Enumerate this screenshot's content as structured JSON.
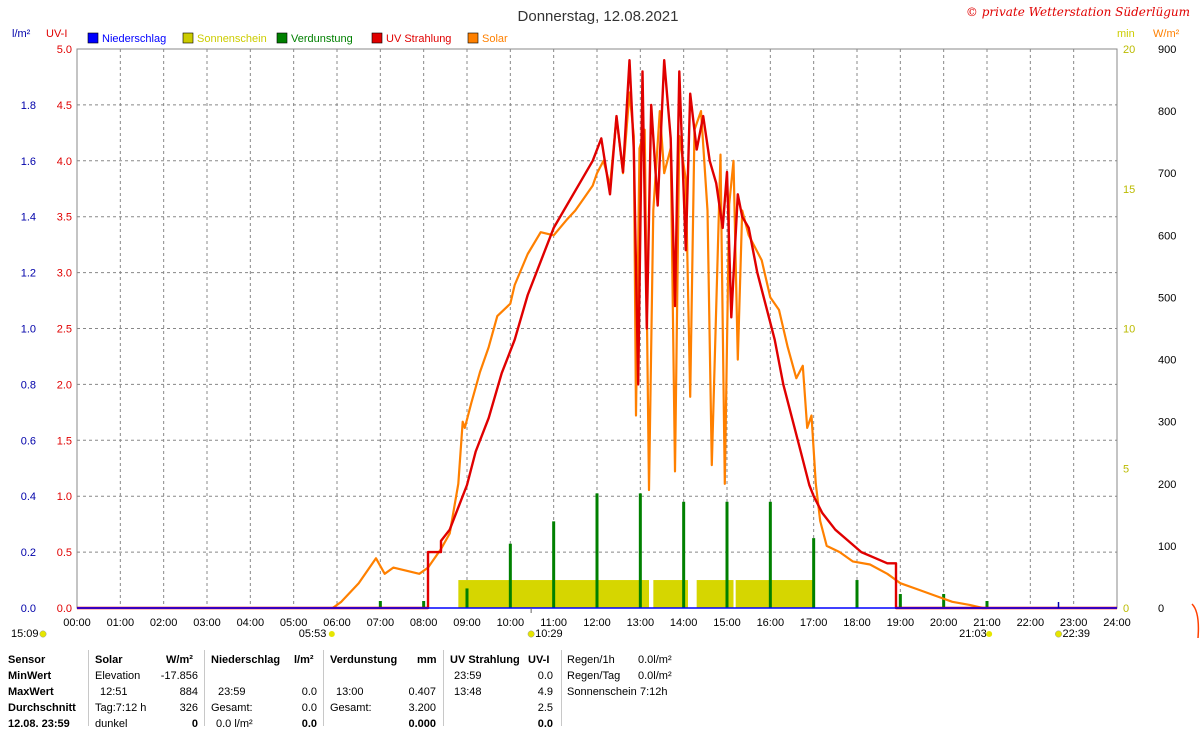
{
  "header": {
    "title": "Donnerstag, 12.08.2021",
    "copyright": "© private Wetterstation Süderlügum",
    "left_unit_1": "l/m²",
    "left_unit_2": "UV-I",
    "right_unit_1": "min",
    "right_unit_2": "W/m²"
  },
  "colors": {
    "niederschlag": "#0000ff",
    "sonnenschein": "#cccc00",
    "sonnenschein_fill": "#d6d600",
    "verdunstung": "#008000",
    "uv": "#e00000",
    "solar": "#ff8000",
    "grid": "#888888"
  },
  "chart_data": {
    "type": "line",
    "title": "Donnerstag, 12.08.2021",
    "legend": [
      {
        "name": "Niederschlag",
        "color": "#0000ff"
      },
      {
        "name": "Sonnenschein",
        "color": "#cccc00"
      },
      {
        "name": "Verdunstung",
        "color": "#008000"
      },
      {
        "name": "UV Strahlung",
        "color": "#e00000"
      },
      {
        "name": "Solar",
        "color": "#ff8000"
      }
    ],
    "legend_position": "top-left",
    "grid": true,
    "x_ticks": [
      "00:00",
      "01:00",
      "02:00",
      "03:00",
      "04:00",
      "05:00",
      "06:00",
      "07:00",
      "08:00",
      "09:00",
      "10:00",
      "11:00",
      "12:00",
      "13:00",
      "14:00",
      "15:00",
      "16:00",
      "17:00",
      "18:00",
      "19:00",
      "20:00",
      "21:00",
      "22:00",
      "23:00",
      "24:00"
    ],
    "x_range_hours": [
      0,
      24
    ],
    "axis_precip": {
      "unit": "l/m²",
      "range": [
        0,
        2.0
      ],
      "ticks": [
        "0.0",
        "0.2",
        "0.4",
        "0.6",
        "0.8",
        "1.0",
        "1.2",
        "1.4",
        "1.6",
        "1.8"
      ]
    },
    "axis_uv": {
      "unit": "UV-I",
      "range": [
        0,
        5.0
      ],
      "ticks": [
        "0.0",
        "0.5",
        "1.0",
        "1.5",
        "2.0",
        "2.5",
        "3.0",
        "3.5",
        "4.0",
        "4.5",
        "5.0"
      ]
    },
    "axis_sun_min": {
      "unit": "min",
      "range": [
        0,
        20
      ],
      "ticks": [
        "0",
        "5",
        "10",
        "15",
        "20"
      ]
    },
    "axis_solar": {
      "unit": "W/m²",
      "range": [
        0,
        900
      ],
      "ticks": [
        "0",
        "100",
        "200",
        "300",
        "400",
        "500",
        "600",
        "700",
        "800",
        "900"
      ]
    },
    "series": [
      {
        "name": "Solar",
        "axis": "W/m²",
        "x_hours": [
          5.9,
          6.1,
          6.5,
          6.9,
          7.1,
          7.3,
          7.6,
          7.9,
          8.1,
          8.4,
          8.6,
          8.8,
          8.9,
          8.95,
          9.1,
          9.3,
          9.5,
          9.7,
          10.0,
          10.1,
          10.4,
          10.7,
          11.0,
          11.3,
          11.5,
          11.7,
          11.9,
          12.0,
          12.15,
          12.3,
          12.45,
          12.6,
          12.75,
          12.85,
          12.9,
          12.98,
          13.1,
          13.2,
          13.3,
          13.45,
          13.55,
          13.7,
          13.8,
          13.9,
          14.05,
          14.15,
          14.25,
          14.4,
          14.55,
          14.65,
          14.85,
          14.95,
          15.05,
          15.15,
          15.25,
          15.35,
          15.5,
          15.65,
          15.8,
          16.0,
          16.2,
          16.4,
          16.6,
          16.75,
          16.85,
          16.95,
          17.05,
          17.15,
          17.3,
          17.6,
          17.9,
          18.3,
          18.7,
          19.0,
          19.4,
          19.8,
          20.2,
          20.6,
          20.9,
          21.0
        ],
        "values": [
          0,
          10,
          40,
          80,
          55,
          65,
          60,
          55,
          65,
          95,
          120,
          200,
          300,
          290,
          330,
          380,
          420,
          470,
          490,
          520,
          570,
          605,
          600,
          625,
          640,
          660,
          680,
          700,
          720,
          680,
          790,
          700,
          830,
          760,
          310,
          740,
          770,
          190,
          640,
          800,
          700,
          740,
          220,
          760,
          690,
          340,
          770,
          800,
          640,
          230,
          730,
          200,
          650,
          720,
          400,
          640,
          600,
          580,
          560,
          500,
          480,
          420,
          370,
          390,
          290,
          310,
          200,
          140,
          100,
          90,
          75,
          70,
          55,
          40,
          30,
          20,
          10,
          5,
          0,
          0
        ]
      },
      {
        "name": "UV Strahlung",
        "axis": "UV-I",
        "x_hours": [
          0,
          8.1,
          8.1,
          8.4,
          8.4,
          8.6,
          8.8,
          9.0,
          9.2,
          9.5,
          9.8,
          10.1,
          10.4,
          10.7,
          11.0,
          11.3,
          11.6,
          11.9,
          12.1,
          12.3,
          12.45,
          12.6,
          12.75,
          12.85,
          12.95,
          13.05,
          13.15,
          13.25,
          13.4,
          13.55,
          13.7,
          13.8,
          13.9,
          14.05,
          14.15,
          14.3,
          14.45,
          14.6,
          14.75,
          14.9,
          15.0,
          15.1,
          15.25,
          15.35,
          15.5,
          15.7,
          15.9,
          16.1,
          16.3,
          16.5,
          16.7,
          16.9,
          17.0,
          17.2,
          17.5,
          17.8,
          18.1,
          18.4,
          18.7,
          18.9,
          18.9,
          24
        ],
        "values": [
          0,
          0,
          0.5,
          0.5,
          0.6,
          0.7,
          0.9,
          1.1,
          1.4,
          1.7,
          2.1,
          2.4,
          2.8,
          3.1,
          3.4,
          3.6,
          3.8,
          4.0,
          4.2,
          3.7,
          4.4,
          3.9,
          4.9,
          4.1,
          2.0,
          4.8,
          2.5,
          4.5,
          3.6,
          4.9,
          4.2,
          2.7,
          4.8,
          3.2,
          4.6,
          4.1,
          4.4,
          4.0,
          3.8,
          3.4,
          3.9,
          2.6,
          3.7,
          3.5,
          3.4,
          3.0,
          2.7,
          2.4,
          2.0,
          1.7,
          1.4,
          1.1,
          1.0,
          0.85,
          0.7,
          0.6,
          0.5,
          0.45,
          0.4,
          0.4,
          0,
          0
        ]
      },
      {
        "name": "Sonnenschein",
        "axis": "min",
        "type": "bar",
        "periods_hours": [
          [
            8.8,
            10.0
          ],
          [
            10.0,
            11.0
          ],
          [
            11.0,
            12.0
          ],
          [
            12.0,
            13.0
          ],
          [
            13.0,
            13.2
          ],
          [
            13.3,
            14.1
          ],
          [
            14.3,
            15.15
          ],
          [
            15.2,
            16.0
          ],
          [
            16.0,
            17.0
          ]
        ],
        "values": [
          1,
          1,
          1,
          1,
          1,
          1,
          1,
          1,
          1
        ],
        "level_min": 1
      },
      {
        "name": "Verdunstung",
        "axis": "l/m²",
        "type": "bar",
        "x_hours": [
          7.0,
          8.0,
          9.0,
          10.0,
          11.0,
          12.0,
          13.0,
          14.0,
          15.0,
          16.0,
          17.0,
          18.0,
          19.0,
          20.0,
          21.0
        ],
        "values": [
          0.025,
          0.025,
          0.07,
          0.23,
          0.31,
          0.41,
          0.41,
          0.38,
          0.38,
          0.38,
          0.25,
          0.1,
          0.05,
          0.05,
          0.025
        ]
      },
      {
        "name": "Niederschlag",
        "axis": "l/m²",
        "type": "bar",
        "x_hours": [],
        "values": []
      }
    ],
    "annotations": [
      {
        "text": "15:09",
        "x_hours": 0,
        "marker": "moon"
      },
      {
        "text": "05:53",
        "x_hours": 5.88,
        "marker": "sunrise"
      },
      {
        "text": "10:29",
        "x_hours": 10.48,
        "marker": "moonrise"
      },
      {
        "text": "21:03",
        "x_hours": 21.05,
        "marker": "sunset"
      },
      {
        "text": "22:39",
        "x_hours": 22.65,
        "marker": "moonset"
      }
    ]
  },
  "summary": {
    "row_labels": {
      "sensor": "Sensor",
      "min": "MinWert",
      "max": "MaxWert",
      "avg": "Durchschnitt",
      "date": "12.08. 23:59"
    },
    "solar": {
      "header": "Solar",
      "unit": "W/m²",
      "min_label": "Elevation",
      "min_value": "-17.856",
      "max_time": "12:51",
      "max_value": "884",
      "avg_label": "Tag:7:12 h",
      "avg_value": "326",
      "last_label": "dunkel",
      "last_value": "0"
    },
    "niederschlag": {
      "header": "Niederschlag",
      "unit": "l/m²",
      "max_time": "23:59",
      "max_value": "0.0",
      "avg_label": "Gesamt:",
      "avg_value": "0.0",
      "last_label": "0.0 l/m²",
      "last_value": "0.0"
    },
    "verdunstung": {
      "header": "Verdunstung",
      "unit": "mm",
      "max_time": "13:00",
      "max_value": "0.407",
      "avg_label": "Gesamt:",
      "avg_value": "3.200",
      "last_value": "0.000"
    },
    "uv": {
      "header": "UV Strahlung",
      "unit": "UV-I",
      "min_time": "23:59",
      "min_value": "0.0",
      "max_time": "13:48",
      "max_value": "4.9",
      "avg_value": "2.5",
      "last_value": "0.0"
    },
    "regen": {
      "hour_label": "Regen/1h",
      "hour_value": "0.0l/m²",
      "day_label": "Regen/Tag",
      "day_value": "0.0l/m²",
      "sun_label": "Sonnenschein",
      "sun_value": "7:12h"
    }
  }
}
